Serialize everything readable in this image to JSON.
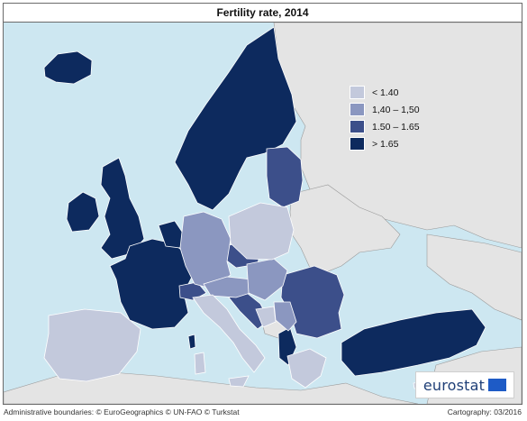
{
  "title": "Fertility rate, 2014",
  "legend": {
    "items": [
      {
        "label": "< 1.40",
        "color": "#c3c9dc"
      },
      {
        "label": "1,40 – 1,50",
        "color": "#8b97c0"
      },
      {
        "label": "1.50 – 1.65",
        "color": "#3c4f8a"
      },
      {
        "label": "> 1.65",
        "color": "#0d2a5e"
      }
    ]
  },
  "colors": {
    "sea": "#cde7f1",
    "non_data_land": "#e4e4e4",
    "border": "#ffffff"
  },
  "logo": {
    "text": "eurostat",
    "icon": "eu-flag-icon"
  },
  "footer": {
    "left": "Administrative boundaries: © EuroGeographics © UN-FAO © Turkstat",
    "right": "Cartography: 03/2016"
  }
}
